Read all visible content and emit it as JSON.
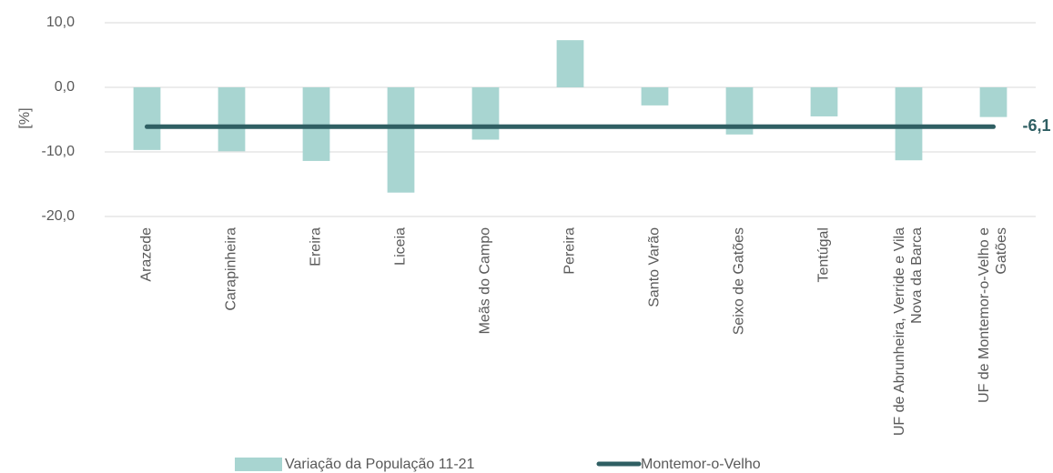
{
  "chart_data": {
    "type": "bar",
    "categories": [
      "Arazede",
      "Carapinheira",
      "Ereira",
      "Liceia",
      "Meãs do Campo",
      "Pereira",
      "Santo Varão",
      "Seixo de Gatões",
      "Tentúgal",
      "UF de Abrunheira, Verride e Vila Nova da Barca",
      "UF de Montemor-o-Velho e Gatões"
    ],
    "y_label": "[%]",
    "ylim": [
      -20,
      10
    ],
    "yticks": [
      {
        "value": -20,
        "label": "-20,0"
      },
      {
        "value": -10,
        "label": "-10,0"
      },
      {
        "value": 0,
        "label": "0,0"
      },
      {
        "value": 10,
        "label": "10,0"
      }
    ],
    "grid": true,
    "series": [
      {
        "name": "Variação da População 11-21",
        "type": "bar",
        "color": "#a8d5d1",
        "values": [
          -9.7,
          -9.9,
          -11.4,
          -16.3,
          -8.1,
          7.3,
          -2.8,
          -7.3,
          -4.5,
          -11.3,
          -4.6
        ]
      },
      {
        "name": "Montemor-o-Velho",
        "type": "line",
        "color": "#2f5f63",
        "values": [
          -6.1,
          -6.1,
          -6.1,
          -6.1,
          -6.1,
          -6.1,
          -6.1,
          -6.1,
          -6.1,
          -6.1,
          -6.1
        ],
        "value_labels": [
          null,
          null,
          null,
          null,
          null,
          null,
          null,
          null,
          null,
          null,
          "-6,1"
        ]
      }
    ]
  }
}
